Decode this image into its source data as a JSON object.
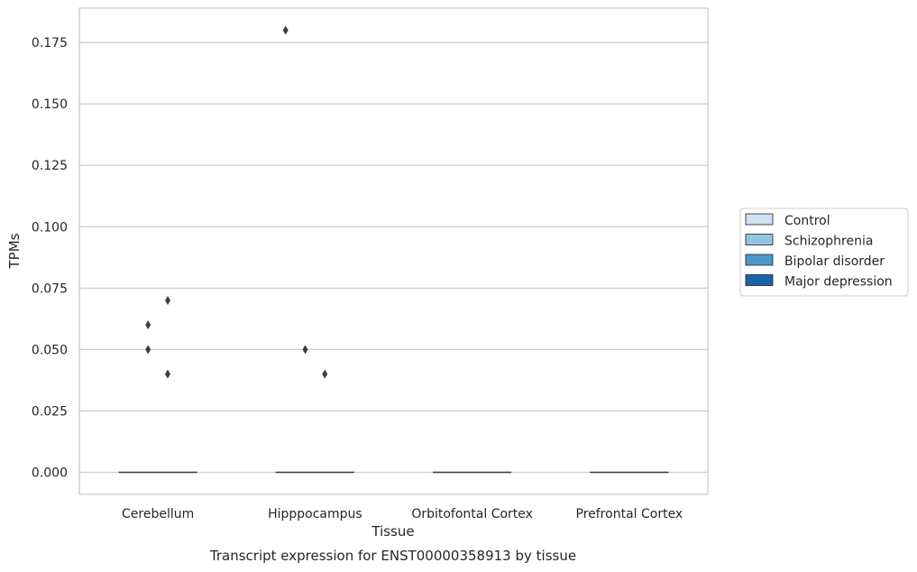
{
  "chart_data": {
    "type": "box",
    "title": "Transcript expression for ENST00000358913 by tissue",
    "xlabel": "Tissue",
    "ylabel": "TPMs",
    "ylim": [
      -0.009,
      0.189
    ],
    "yticks": [
      0.0,
      0.025,
      0.05,
      0.075,
      0.1,
      0.125,
      0.15,
      0.175
    ],
    "ytick_labels": [
      "0.000",
      "0.025",
      "0.050",
      "0.075",
      "0.100",
      "0.125",
      "0.150",
      "0.175"
    ],
    "categories": [
      "Cerebellum",
      "Hipppocampus",
      "Orbitofontal Cortex",
      "Prefrontal Cortex"
    ],
    "grid": true,
    "legend_position": "right",
    "series": [
      {
        "name": "Control",
        "color": "#d0e1f2",
        "median": [
          0,
          0,
          0,
          0
        ]
      },
      {
        "name": "Schizophrenia",
        "color": "#94c4df",
        "median": [
          0,
          0,
          0,
          0
        ]
      },
      {
        "name": "Bipolar disorder",
        "color": "#4a98c9",
        "median": [
          0,
          0,
          0,
          0
        ]
      },
      {
        "name": "Major depression",
        "color": "#1764ab",
        "median": [
          0,
          0,
          0,
          0
        ]
      }
    ],
    "outliers": [
      {
        "category": "Cerebellum",
        "series": "Schizophrenia",
        "values": [
          0.06,
          0.05
        ]
      },
      {
        "category": "Cerebellum",
        "series": "Bipolar disorder",
        "values": [
          0.07,
          0.04
        ]
      },
      {
        "category": "Hipppocampus",
        "series": "Control",
        "values": [
          0.18
        ]
      },
      {
        "category": "Hipppocampus",
        "series": "Schizophrenia",
        "values": [
          0.05
        ]
      },
      {
        "category": "Hipppocampus",
        "series": "Bipolar disorder",
        "values": [
          0.04
        ]
      }
    ]
  }
}
